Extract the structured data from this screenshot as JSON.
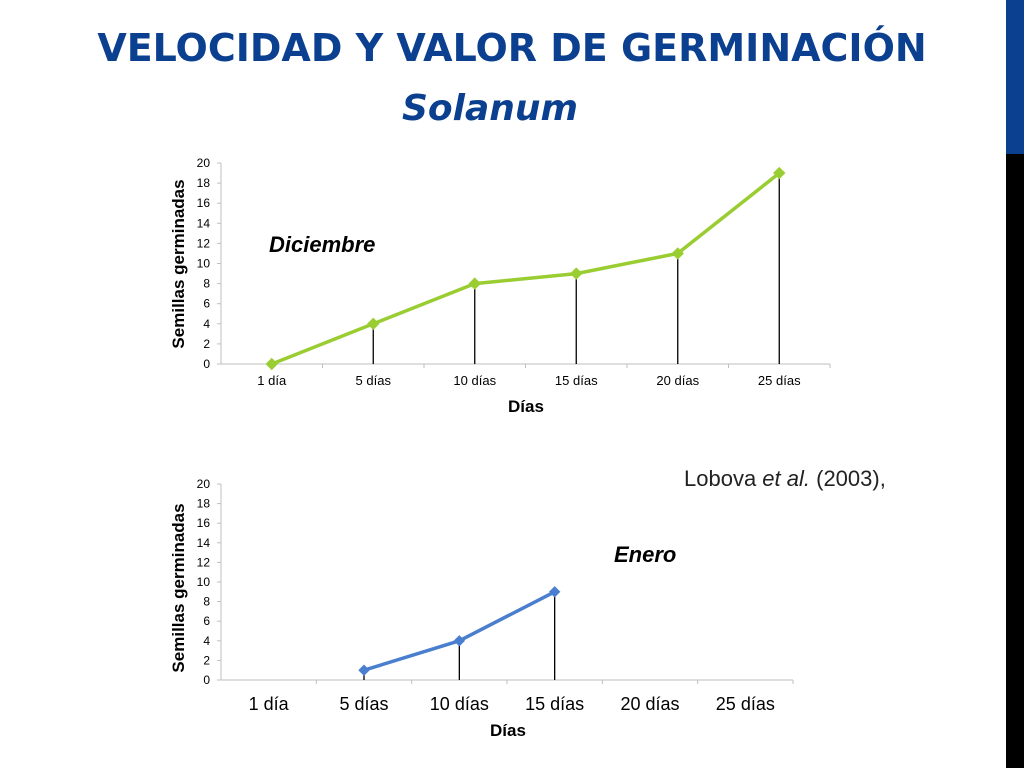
{
  "slide": {
    "title": "Velocidad y valor de germinación",
    "subtitle": "Solanum",
    "citation_prefix": "Lobova ",
    "citation_italic": "et al.",
    "citation_suffix": " (2003),"
  },
  "colors": {
    "title": "#0b3f8f",
    "december_line": "#9acd32",
    "january_line": "#4a7fcf",
    "sidebar_dark": "#000000",
    "sidebar_accent": "#0b3f8f"
  },
  "chart_data": [
    {
      "type": "line",
      "title": "",
      "annotation": "Diciembre",
      "xlabel": "Días",
      "ylabel": "Semillas germinadas",
      "categories": [
        "1 día",
        "5 días",
        "10 días",
        "15 días",
        "20 días",
        "25 días"
      ],
      "yticks": [
        "0",
        "2",
        "4",
        "6",
        "8",
        "10",
        "12",
        "14",
        "16",
        "18",
        "20"
      ],
      "series": [
        {
          "values": [
            0,
            4,
            8,
            9,
            11,
            19
          ]
        }
      ],
      "ylim": [
        0,
        20
      ],
      "grid": false,
      "drop_lines": true
    },
    {
      "type": "line",
      "title": "",
      "annotation": "Enero",
      "xlabel": "Días",
      "ylabel": "Semillas germinadas",
      "categories": [
        "1 día",
        "5 días",
        "10 días",
        "15 días",
        "20 días",
        "25 días"
      ],
      "yticks": [
        "0",
        "2",
        "4",
        "6",
        "8",
        "10",
        "12",
        "14",
        "16",
        "18",
        "20"
      ],
      "series": [
        {
          "values": [
            null,
            1,
            4,
            9,
            null,
            null
          ]
        }
      ],
      "ylim": [
        0,
        20
      ],
      "grid": false,
      "drop_lines": true
    }
  ]
}
